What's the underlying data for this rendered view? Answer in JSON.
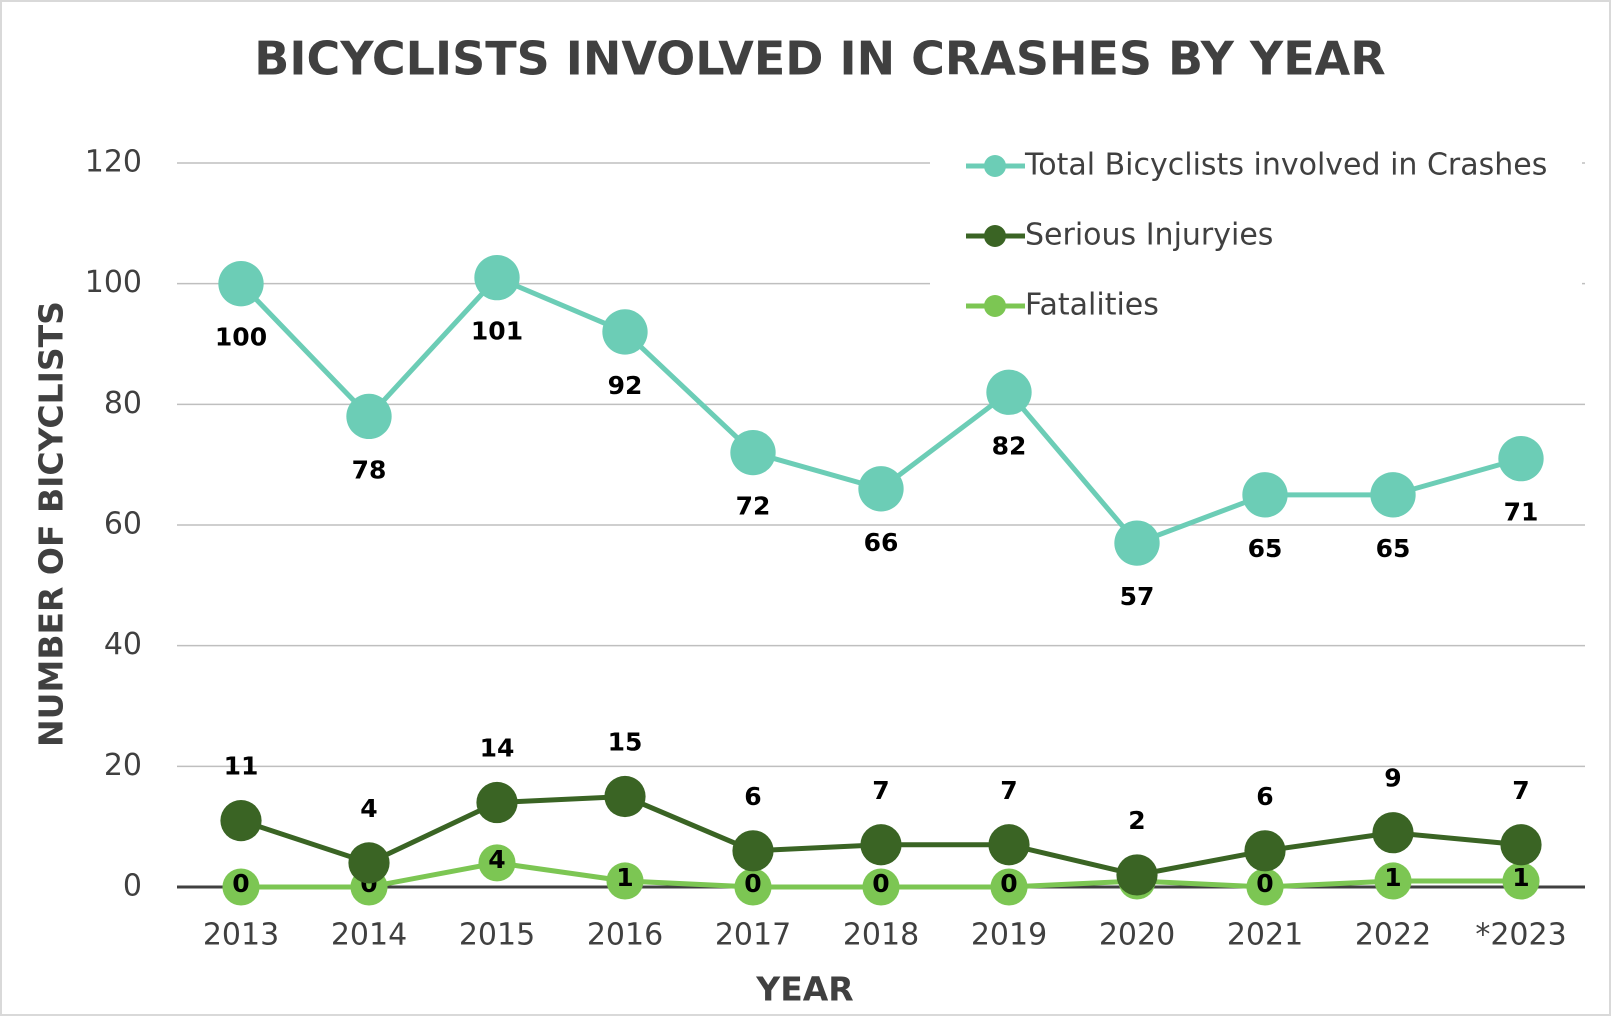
{
  "chart_data": {
    "type": "line",
    "title": "BICYCLISTS INVOLVED IN CRASHES BY YEAR",
    "x_label": "YEAR",
    "y_label": "NUMBER OF BICYCLISTS",
    "categories": [
      "2013",
      "2014",
      "2015",
      "2016",
      "2017",
      "2018",
      "2019",
      "2020",
      "2021",
      "2022",
      "*2023"
    ],
    "series": [
      {
        "name": "Total Bicyclists involved in Crashes",
        "color": "#6ccdb6",
        "values": [
          100,
          78,
          101,
          92,
          72,
          66,
          82,
          57,
          65,
          65,
          71
        ]
      },
      {
        "name": "Serious Injuryies",
        "color": "#3a6424",
        "values": [
          11,
          4,
          14,
          15,
          6,
          7,
          7,
          2,
          6,
          9,
          7
        ]
      },
      {
        "name": "Fatalities",
        "color": "#7cc653",
        "values": [
          0,
          0,
          4,
          1,
          0,
          0,
          0,
          1,
          0,
          1,
          1
        ]
      }
    ],
    "ylim": [
      0,
      120
    ],
    "yticks": [
      0,
      20,
      40,
      60,
      80,
      100,
      120
    ],
    "grid": true,
    "legend": "upper right"
  }
}
